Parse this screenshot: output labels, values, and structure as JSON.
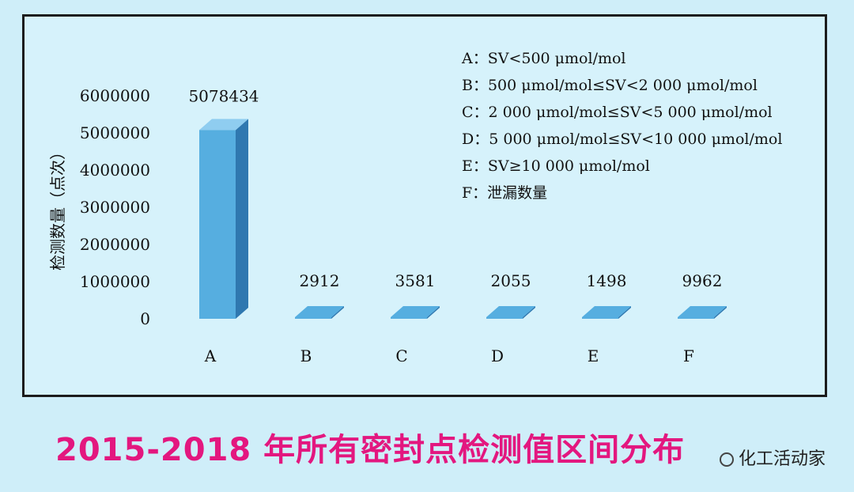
{
  "chart_data": {
    "type": "bar",
    "categories": [
      "A",
      "B",
      "C",
      "D",
      "E",
      "F"
    ],
    "values": [
      5078434,
      2912,
      3581,
      2055,
      1498,
      9962
    ],
    "value_labels": [
      "5078434",
      "2912",
      "3581",
      "2055",
      "1498",
      "9962"
    ],
    "ylim": [
      0,
      6000000
    ],
    "yticks": [
      "0",
      "1000000",
      "2000000",
      "3000000",
      "4000000",
      "5000000",
      "6000000"
    ],
    "ylabel": "检测数量（点次）",
    "xlabel": "",
    "legend": [
      "A：SV<500 μmol/mol",
      "B：500 μmol/mol≤SV<2 000 μmol/mol",
      "C：2 000 μmol/mol≤SV<5 000 μmol/mol",
      "D：5 000 μmol/mol≤SV<10 000 μmol/mol",
      "E：SV≥10 000 μmol/mol",
      "F：泄漏数量"
    ],
    "legend_position": "top-right",
    "grid": false,
    "colors": {
      "bar_front": "#56aee0",
      "bar_side": "#2f78b0",
      "bar_top": "#8fcdf0"
    }
  },
  "caption": "2015-2018 年所有密封点检测值区间分布",
  "watermark": "化工活动家"
}
